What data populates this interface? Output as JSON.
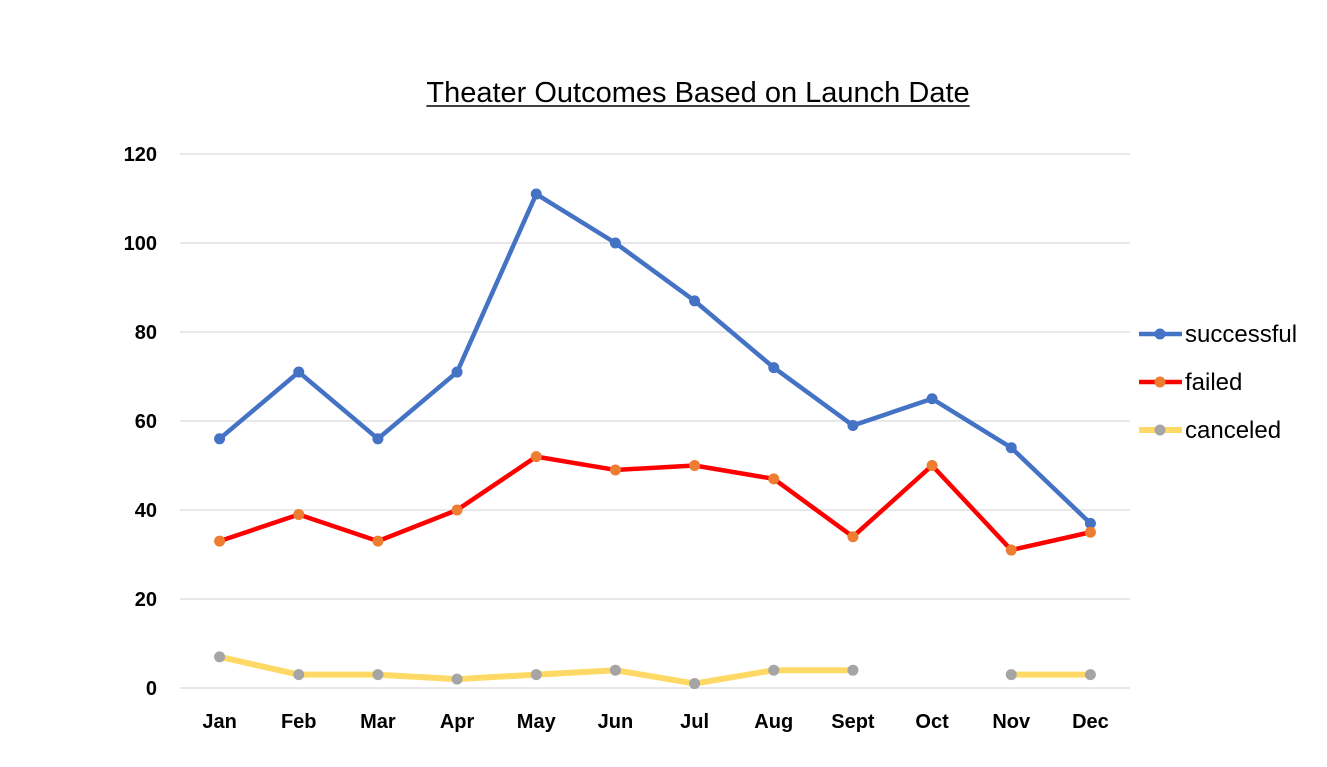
{
  "chart_data": {
    "type": "line",
    "title": "Theater Outcomes Based on Launch Date",
    "xlabel": "",
    "ylabel": "",
    "categories": [
      "Jan",
      "Feb",
      "Mar",
      "Apr",
      "May",
      "Jun",
      "Jul",
      "Aug",
      "Sept",
      "Oct",
      "Nov",
      "Dec"
    ],
    "ylim": [
      0,
      120
    ],
    "yticks": [
      0,
      20,
      40,
      60,
      80,
      100,
      120
    ],
    "grid": true,
    "legend_position": "right",
    "series": [
      {
        "name": "successful",
        "values": [
          56,
          71,
          56,
          71,
          111,
          100,
          87,
          72,
          59,
          65,
          54,
          37
        ],
        "line_color": "#4472C4",
        "marker_color": "#4472C4"
      },
      {
        "name": "failed",
        "values": [
          33,
          39,
          33,
          40,
          52,
          49,
          50,
          47,
          34,
          50,
          31,
          35
        ],
        "line_color": "#FF0000",
        "marker_color": "#ED7D31"
      },
      {
        "name": "canceled",
        "values": [
          7,
          3,
          3,
          2,
          3,
          4,
          1,
          4,
          4,
          null,
          3,
          3
        ],
        "line_color": "#FFD966",
        "marker_color": "#A5A5A5"
      }
    ]
  }
}
